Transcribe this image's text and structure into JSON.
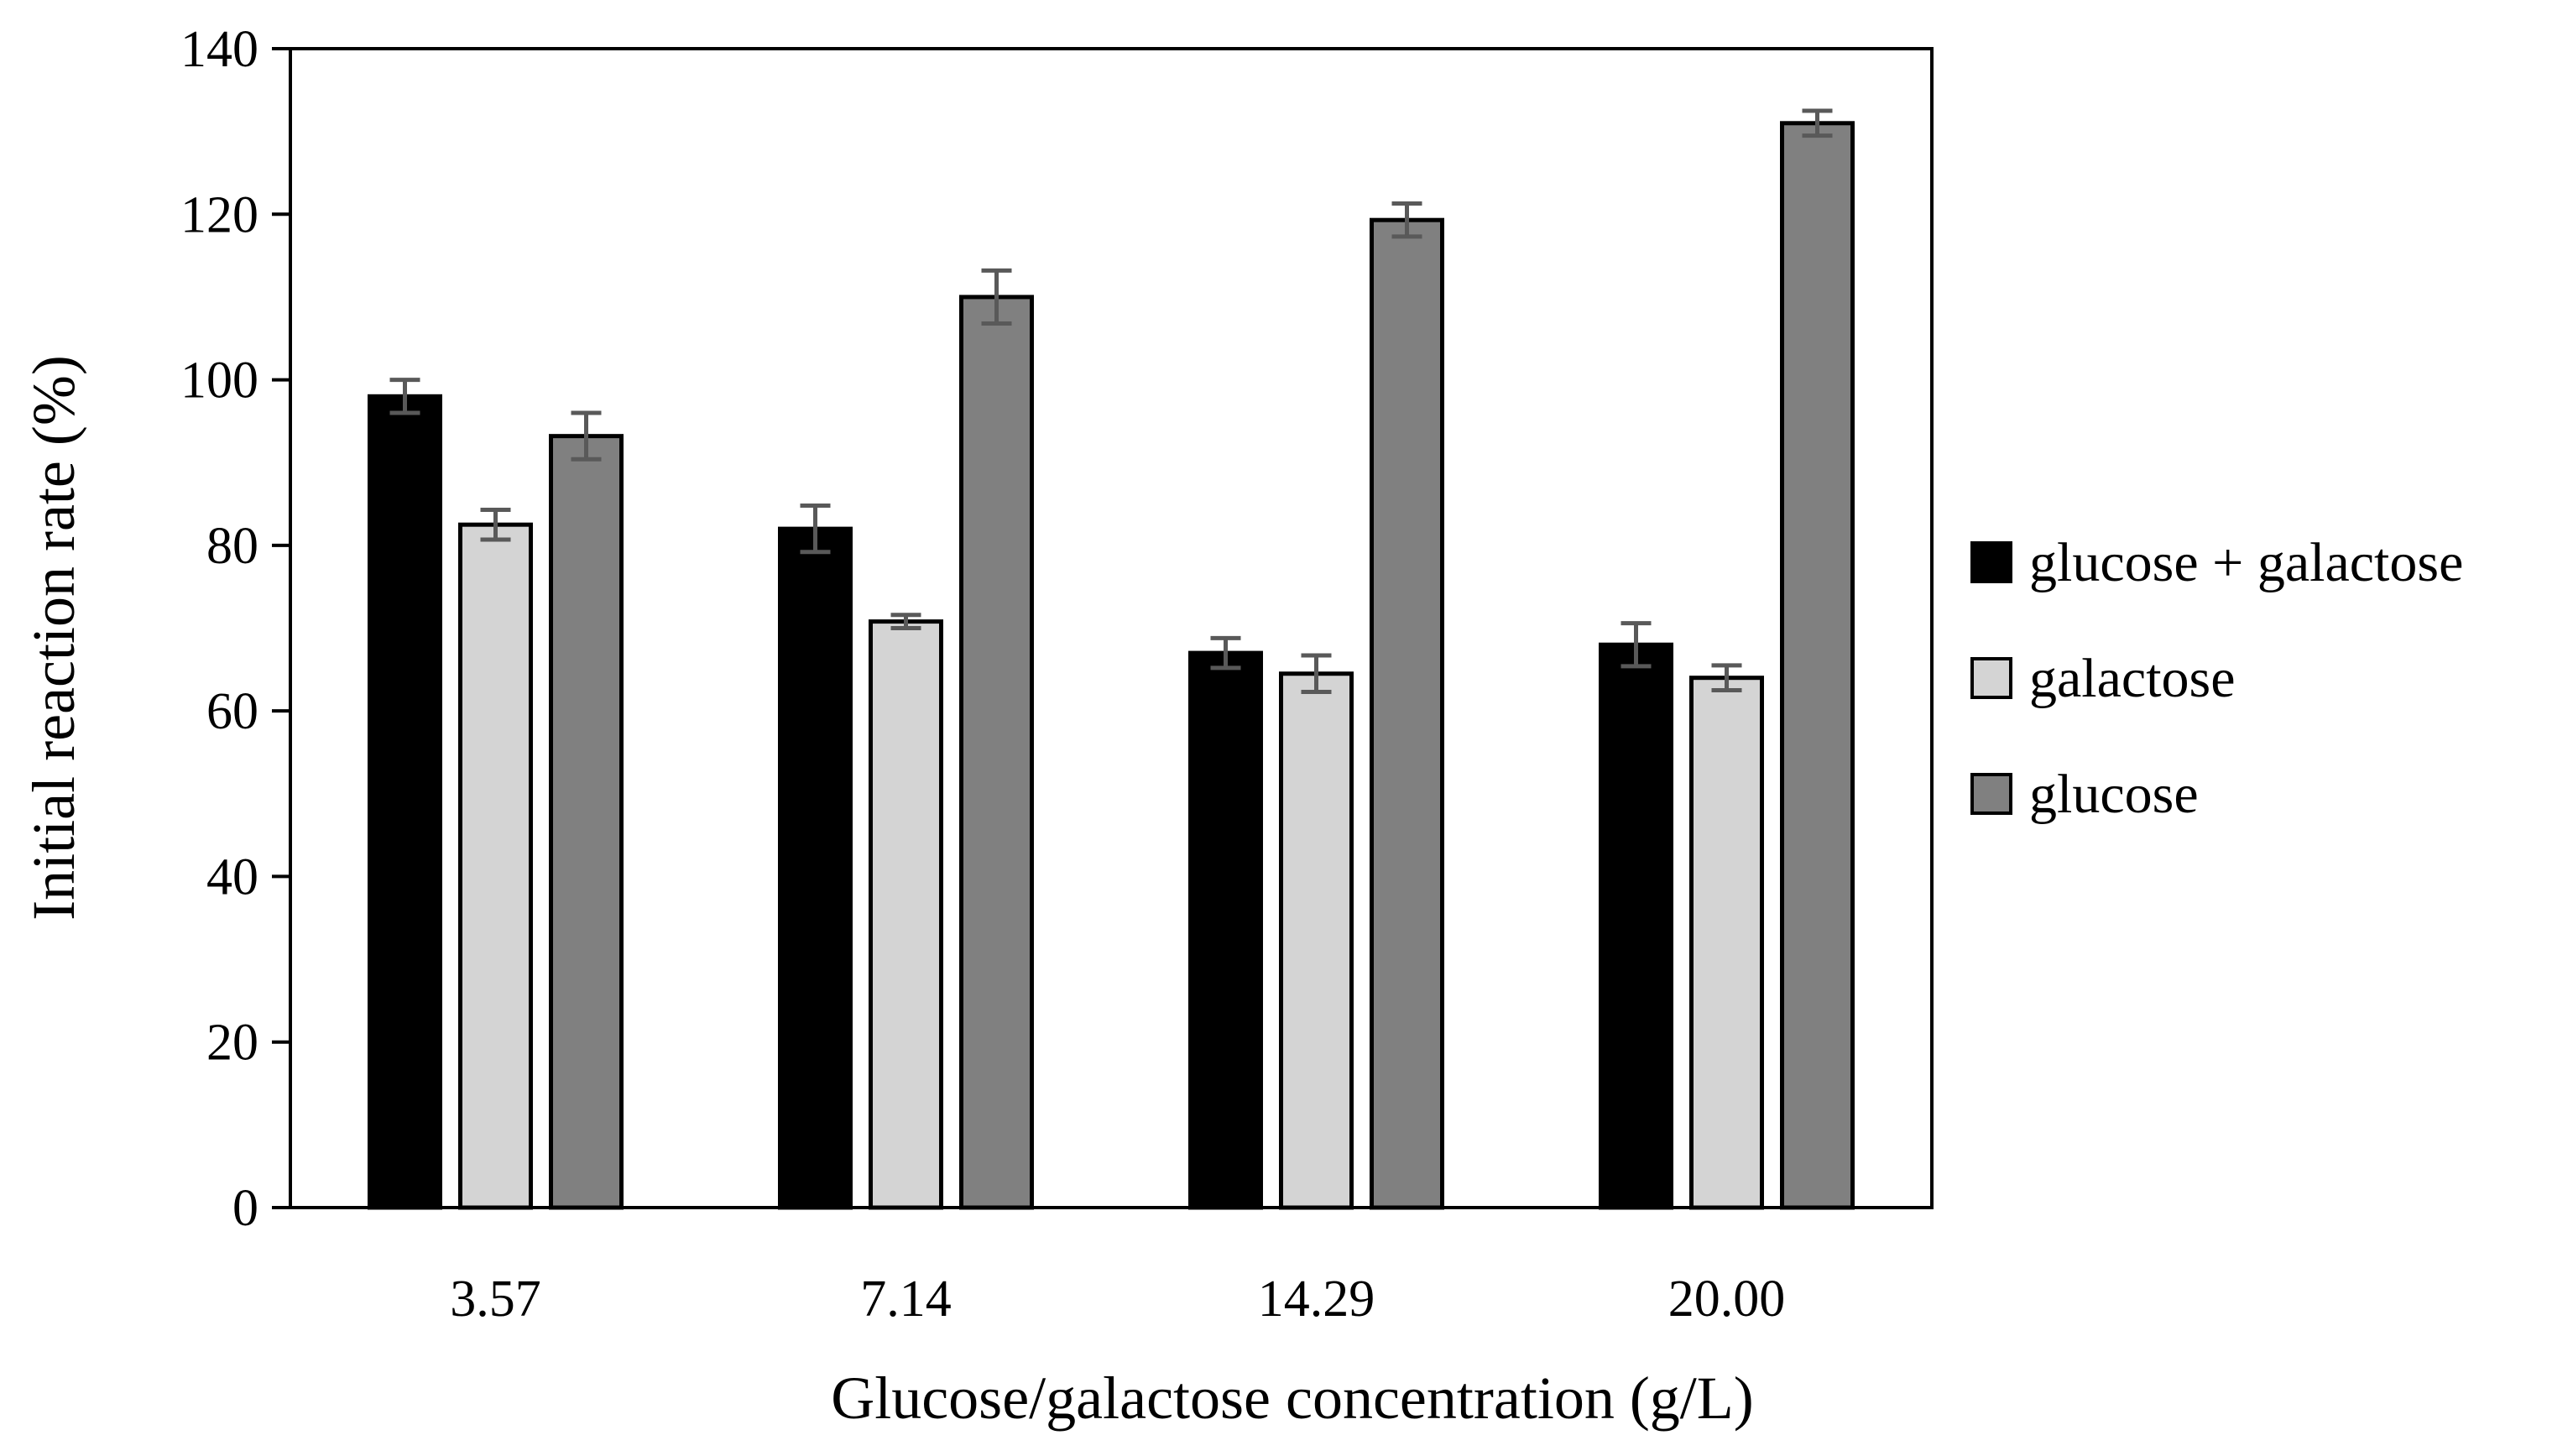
{
  "chart_data": {
    "type": "bar",
    "title": "",
    "xlabel": "Glucose/galactose concentration (g/L)",
    "ylabel": "Initial reaction rate (%)",
    "ylim": [
      0,
      140
    ],
    "yticks": [
      0,
      20,
      40,
      60,
      80,
      100,
      120,
      140
    ],
    "ytick_labels": [
      "0",
      "20",
      "40",
      "60",
      "80",
      "100",
      "120",
      "140"
    ],
    "categories": [
      "3.57",
      "7.14",
      "14.29",
      "20.00"
    ],
    "grid": false,
    "legend_position": "right",
    "series": [
      {
        "name": "glucose + galactose",
        "color": "#000000",
        "values": [
          98,
          82,
          67,
          68
        ],
        "errors": [
          2.0,
          2.8,
          1.8,
          2.6
        ]
      },
      {
        "name": "galactose",
        "color": "#d4d4d4",
        "values": [
          82.5,
          70.8,
          64.5,
          64
        ],
        "errors": [
          1.8,
          0.8,
          2.2,
          1.5
        ]
      },
      {
        "name": "glucose",
        "color": "#808080",
        "values": [
          93.2,
          110,
          119.3,
          131
        ],
        "errors": [
          2.8,
          3.2,
          2.0,
          1.5
        ]
      }
    ],
    "error_bar_color": "#595959"
  }
}
